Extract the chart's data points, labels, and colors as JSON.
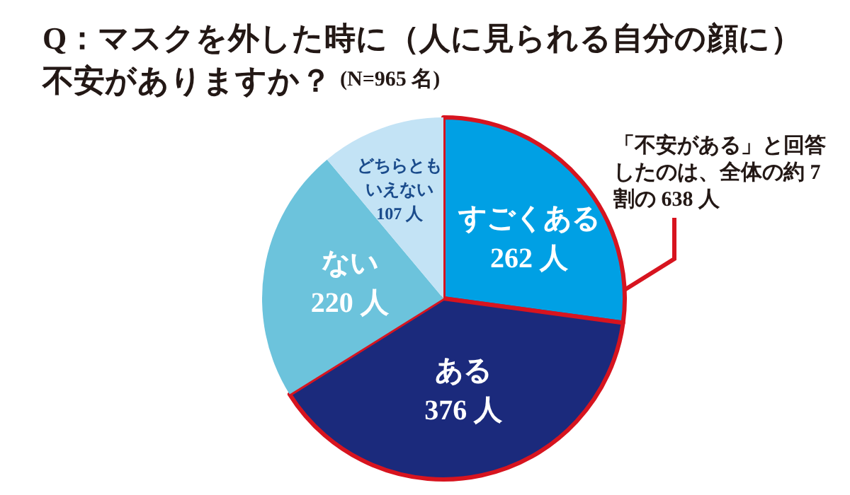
{
  "chart_data": {
    "type": "pie",
    "title": "Q：マスクを外した時に（人に見られる自分の顔に）不安がありますか？",
    "subtitle": "(N=965 名)",
    "categories": [
      "すごくある",
      "ある",
      "ない",
      "どちらともいえない"
    ],
    "values": [
      262,
      376,
      220,
      107
    ],
    "value_labels": [
      "262 人",
      "376 人",
      "220 人",
      "107 人"
    ],
    "colors": [
      "#00a0e4",
      "#1b2a7c",
      "#6cc3dc",
      "#c3e3f5"
    ],
    "annotations": [
      "「不安がある」と回答したのは、全体の約 7 割の 638 人"
    ],
    "legend": false
  }
}
